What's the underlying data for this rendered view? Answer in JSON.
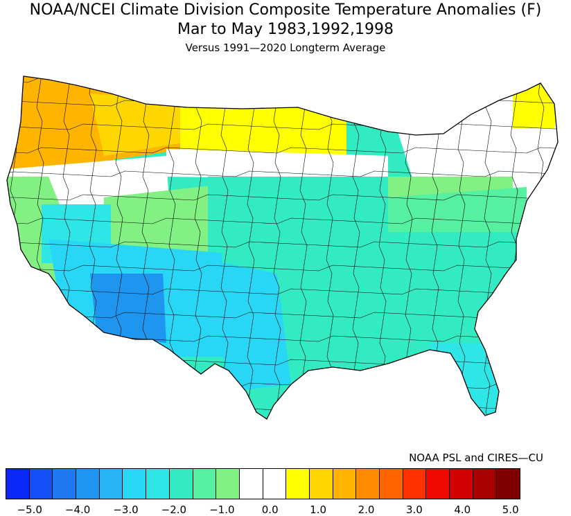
{
  "title": {
    "line1": "NOAA/NCEI Climate Division Composite Temperature Anomalies (F)",
    "line2": "Mar to May  1983,1992,1998",
    "line3": "Versus 1991—2020 Longterm Average"
  },
  "credit": "NOAA PSL and CIRES—CU",
  "legend": {
    "colors": [
      "#0a28f5",
      "#1450f5",
      "#1e78f0",
      "#1e96f0",
      "#28b4f5",
      "#28d7f5",
      "#2ee6e6",
      "#32ebc3",
      "#55f0a0",
      "#82f082",
      "#ffffff",
      "#ffffff",
      "#ffff00",
      "#ffd700",
      "#ffb400",
      "#ff8c00",
      "#ff6400",
      "#ff3200",
      "#f00a00",
      "#d20000",
      "#aa0000",
      "#800000"
    ],
    "ticks": [
      "-5.0",
      "-4.0",
      "-3.0",
      "-2.0",
      "-1.0",
      "0.0",
      "1.0",
      "2.0",
      "3.0",
      "4.0",
      "5.0"
    ]
  },
  "map_regions": [
    {
      "name": "pacific-northwest",
      "color": "#ffb400"
    },
    {
      "name": "northern-rockies",
      "color": "#ffd700"
    },
    {
      "name": "northern-plains",
      "color": "#ffff00"
    },
    {
      "name": "upper-midwest",
      "color": "#ffff00"
    },
    {
      "name": "great-basin",
      "color": "#ffffff"
    },
    {
      "name": "central-plains",
      "color": "#ffffff"
    },
    {
      "name": "northeast",
      "color": "#ffffff"
    },
    {
      "name": "california",
      "color": "#82f082"
    },
    {
      "name": "ohio-valley",
      "color": "#82f082"
    },
    {
      "name": "central-rockies",
      "color": "#82f082"
    },
    {
      "name": "mid-atlantic",
      "color": "#55f0a0"
    },
    {
      "name": "southern-plains",
      "color": "#32ebc3"
    },
    {
      "name": "southeast",
      "color": "#32ebc3"
    },
    {
      "name": "southern-nevada",
      "color": "#2ee6e6"
    },
    {
      "name": "southwest",
      "color": "#28d7f5"
    },
    {
      "name": "arizona",
      "color": "#1e96f0"
    },
    {
      "name": "texas",
      "color": "#28d7f5"
    },
    {
      "name": "florida",
      "color": "#2ee6e6"
    },
    {
      "name": "maine",
      "color": "#ffff00"
    }
  ]
}
